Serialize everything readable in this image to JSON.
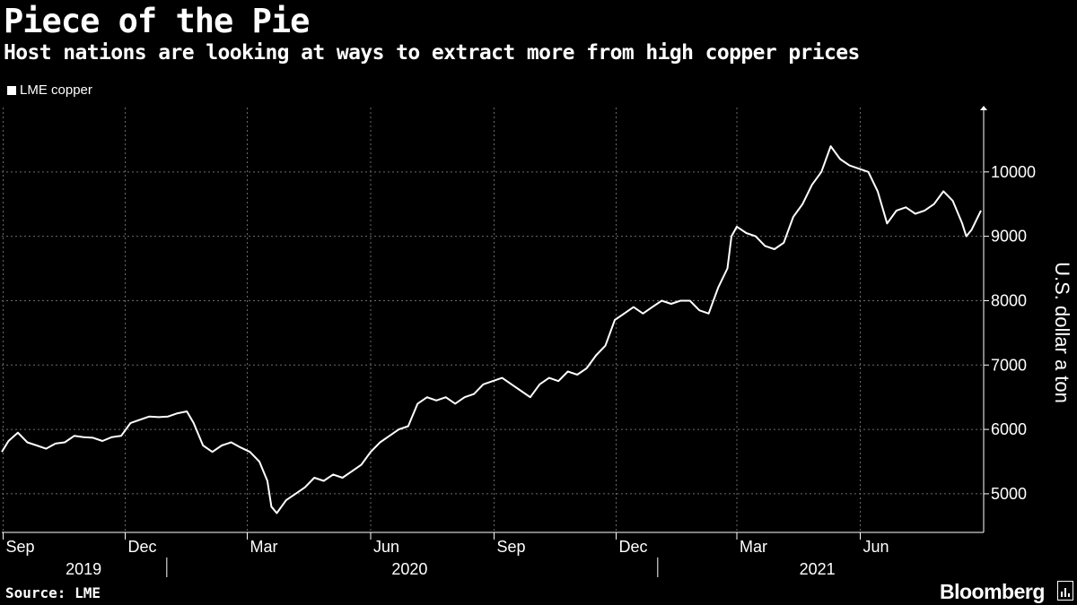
{
  "header": {
    "title": "Piece of the Pie",
    "subtitle": "Host nations are looking at ways to extract more from high copper prices"
  },
  "legend": {
    "label": "LME copper",
    "color": "#ffffff"
  },
  "footer": {
    "source": "Source: LME",
    "brand": "Bloomberg"
  },
  "icons": {
    "brand_icon": "bloomberg-terminal-icon"
  },
  "colors": {
    "background": "#000000",
    "line": "#ffffff",
    "grid": "#6b6b6b"
  },
  "chart_data": {
    "type": "line",
    "ylabel": "U.S. dollar a ton",
    "ylim": [
      4400,
      11000
    ],
    "yticks": [
      5000,
      6000,
      7000,
      8000,
      9000,
      10000
    ],
    "ytick_labels": [
      "5000",
      "6000",
      "7000",
      "8000",
      "9000",
      "10000"
    ],
    "x_range": [
      "2019-08-31",
      "2021-09-01"
    ],
    "grid": true,
    "legend_position": "top-left",
    "xticks": [
      {
        "date": "2019-09-01",
        "label": "Sep"
      },
      {
        "date": "2019-12-01",
        "label": "Dec"
      },
      {
        "date": "2020-03-01",
        "label": "Mar"
      },
      {
        "date": "2020-06-01",
        "label": "Jun"
      },
      {
        "date": "2020-09-01",
        "label": "Sep"
      },
      {
        "date": "2020-12-01",
        "label": "Dec"
      },
      {
        "date": "2021-03-01",
        "label": "Mar"
      },
      {
        "date": "2021-06-01",
        "label": "Jun"
      }
    ],
    "year_labels": [
      {
        "date": "2019-10-31",
        "label": "2019"
      },
      {
        "date": "2020-06-30",
        "label": "2020"
      },
      {
        "date": "2021-04-30",
        "label": "2021"
      }
    ],
    "series": [
      {
        "name": "LME copper",
        "x": [
          "2019-08-31",
          "2019-09-05",
          "2019-09-12",
          "2019-09-19",
          "2019-09-26",
          "2019-10-03",
          "2019-10-10",
          "2019-10-17",
          "2019-10-24",
          "2019-10-31",
          "2019-11-07",
          "2019-11-14",
          "2019-11-21",
          "2019-11-28",
          "2019-12-05",
          "2019-12-12",
          "2019-12-19",
          "2019-12-26",
          "2020-01-02",
          "2020-01-09",
          "2020-01-16",
          "2020-01-21",
          "2020-01-28",
          "2020-02-04",
          "2020-02-11",
          "2020-02-18",
          "2020-02-25",
          "2020-03-03",
          "2020-03-10",
          "2020-03-16",
          "2020-03-19",
          "2020-03-23",
          "2020-03-30",
          "2020-04-06",
          "2020-04-13",
          "2020-04-20",
          "2020-04-27",
          "2020-05-04",
          "2020-05-11",
          "2020-05-18",
          "2020-05-25",
          "2020-06-01",
          "2020-06-08",
          "2020-06-15",
          "2020-06-22",
          "2020-06-29",
          "2020-07-06",
          "2020-07-13",
          "2020-07-20",
          "2020-07-27",
          "2020-08-03",
          "2020-08-10",
          "2020-08-17",
          "2020-08-24",
          "2020-08-31",
          "2020-09-07",
          "2020-09-14",
          "2020-09-21",
          "2020-09-28",
          "2020-10-05",
          "2020-10-12",
          "2020-10-19",
          "2020-10-26",
          "2020-11-02",
          "2020-11-09",
          "2020-11-16",
          "2020-11-23",
          "2020-11-30",
          "2020-12-07",
          "2020-12-14",
          "2020-12-21",
          "2020-12-28",
          "2021-01-04",
          "2021-01-11",
          "2021-01-18",
          "2021-01-25",
          "2021-02-01",
          "2021-02-08",
          "2021-02-15",
          "2021-02-22",
          "2021-02-25",
          "2021-03-01",
          "2021-03-08",
          "2021-03-15",
          "2021-03-22",
          "2021-03-29",
          "2021-04-05",
          "2021-04-12",
          "2021-04-19",
          "2021-04-26",
          "2021-05-03",
          "2021-05-10",
          "2021-05-17",
          "2021-05-24",
          "2021-05-31",
          "2021-06-07",
          "2021-06-14",
          "2021-06-21",
          "2021-06-28",
          "2021-07-05",
          "2021-07-12",
          "2021-07-19",
          "2021-07-26",
          "2021-08-02",
          "2021-08-09",
          "2021-08-16",
          "2021-08-19",
          "2021-08-23",
          "2021-08-30"
        ],
        "y": [
          5650,
          5820,
          5950,
          5800,
          5750,
          5700,
          5780,
          5800,
          5900,
          5880,
          5870,
          5820,
          5880,
          5900,
          6100,
          6150,
          6200,
          6190,
          6200,
          6250,
          6280,
          6100,
          5750,
          5650,
          5750,
          5800,
          5720,
          5650,
          5500,
          5200,
          4800,
          4700,
          4900,
          5000,
          5100,
          5250,
          5200,
          5300,
          5250,
          5350,
          5450,
          5650,
          5800,
          5900,
          6000,
          6050,
          6400,
          6500,
          6450,
          6500,
          6400,
          6500,
          6550,
          6700,
          6750,
          6800,
          6700,
          6600,
          6500,
          6700,
          6800,
          6750,
          6900,
          6850,
          6950,
          7150,
          7300,
          7700,
          7800,
          7900,
          7800,
          7900,
          8000,
          7950,
          8000,
          8000,
          7850,
          7800,
          8200,
          8500,
          9000,
          9150,
          9050,
          9000,
          8850,
          8800,
          8900,
          9300,
          9500,
          9800,
          10000,
          10400,
          10200,
          10100,
          10050,
          10000,
          9700,
          9200,
          9400,
          9450,
          9350,
          9400,
          9500,
          9700,
          9550,
          9200,
          9000,
          9100,
          9400
        ]
      }
    ]
  }
}
